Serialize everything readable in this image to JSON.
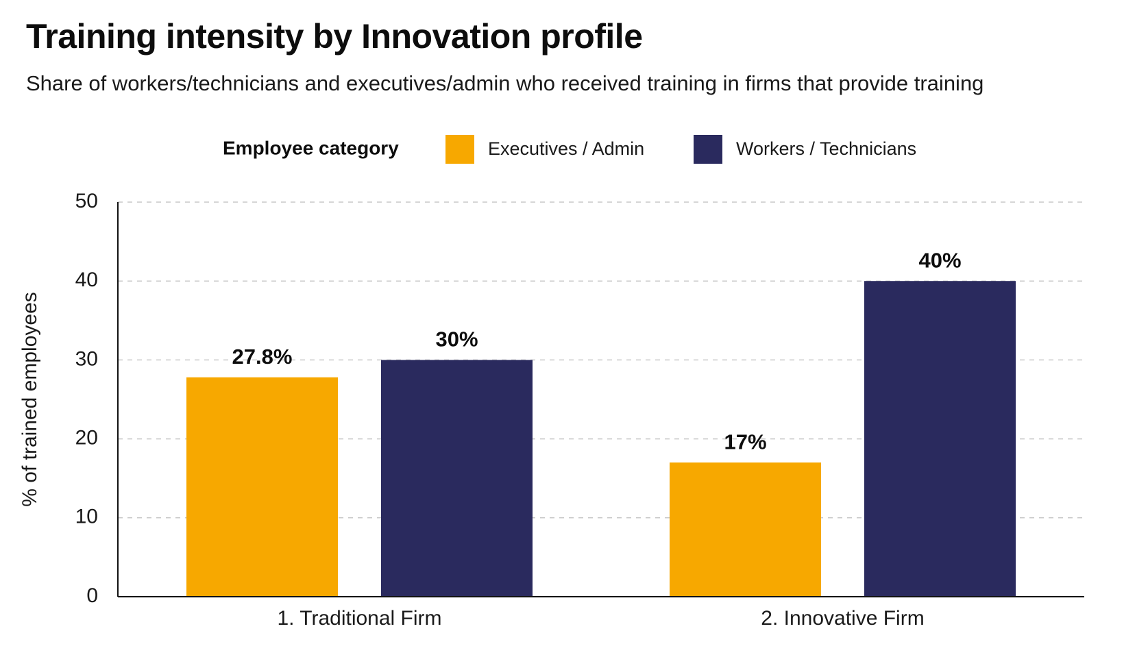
{
  "chart_data": {
    "type": "bar",
    "title": "Training intensity by Innovation profile",
    "subtitle": "Share of workers/technicians and executives/admin who received training in firms that provide training",
    "xlabel": "",
    "ylabel": "% of trained employees",
    "ylim": [
      0,
      50
    ],
    "yticks": [
      0,
      10,
      20,
      30,
      40,
      50
    ],
    "grid": true,
    "legend": {
      "title": "Employee category",
      "placement": "top"
    },
    "categories": [
      "1. Traditional Firm",
      "2. Innovative Firm"
    ],
    "series": [
      {
        "name": "Executives / Admin",
        "color": "#F7A800",
        "values": [
          27.8,
          17
        ],
        "labels": [
          "27.8%",
          "17%"
        ]
      },
      {
        "name": "Workers / Technicians",
        "color": "#2A2A5E",
        "values": [
          30,
          40
        ],
        "labels": [
          "30%",
          "40%"
        ]
      }
    ]
  }
}
